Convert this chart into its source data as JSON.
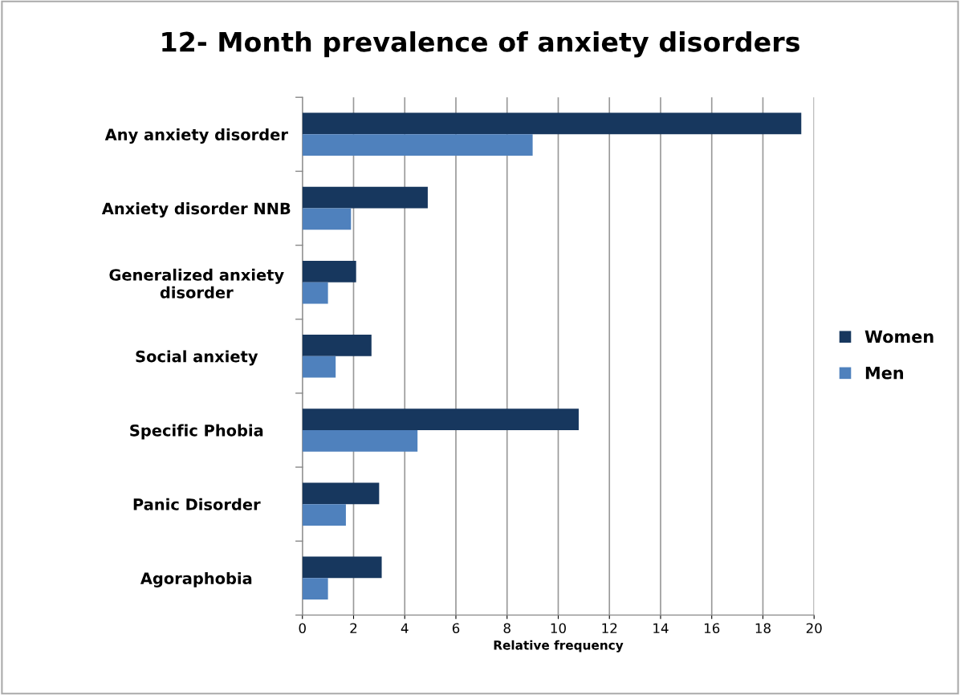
{
  "chart_data": {
    "type": "bar",
    "orientation": "horizontal",
    "title": "12- Month prevalence of anxiety disorders",
    "xlabel": "Relative frequency",
    "categories": [
      "Any anxiety disorder",
      "Anxiety disorder NNB",
      "Generalized anxiety\ndisorder",
      "Social anxiety",
      "Specific Phobia",
      "Panic Disorder",
      "Agoraphobia"
    ],
    "series": [
      {
        "name": "Women",
        "color": "#17375e",
        "values": [
          19.5,
          4.9,
          2.1,
          2.7,
          10.8,
          3.0,
          3.1
        ]
      },
      {
        "name": "Men",
        "color": "#4f81bd",
        "values": [
          9.0,
          1.9,
          1.0,
          1.3,
          4.5,
          1.7,
          1.0
        ]
      }
    ],
    "xlim": [
      0,
      20
    ],
    "xticks": [
      0,
      2,
      4,
      6,
      8,
      10,
      12,
      14,
      16,
      18,
      20
    ],
    "grid": "x",
    "legend": "right"
  }
}
